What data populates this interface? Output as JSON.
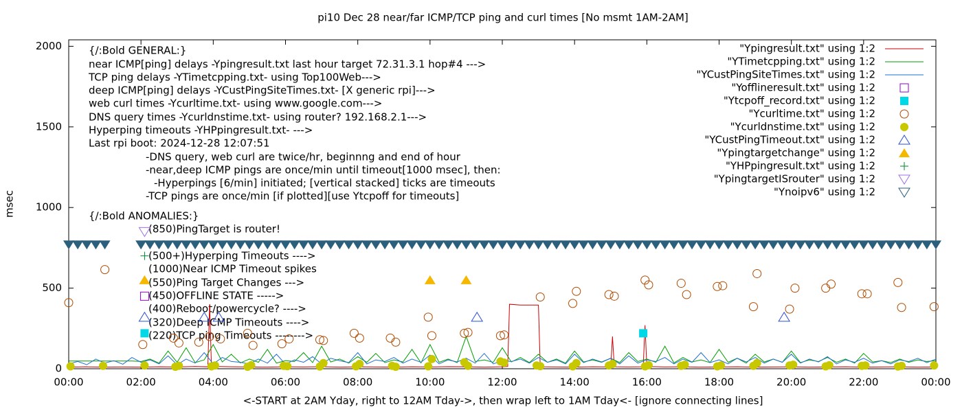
{
  "chart_data": {
    "type": "line",
    "title": "pi10 Dec 28  near/far ICMP/TCP ping and curl times [No msmt 1AM-2AM]",
    "x_label": "<-START at 2AM Yday, right to 12AM Tday->, then wrap left to 1AM Tday<- [ignore connecting lines]",
    "y_label": "msec",
    "xlim": [
      0,
      24
    ],
    "ylim": [
      0,
      2040
    ],
    "xticks": [
      {
        "value": 0,
        "label": "00:00"
      },
      {
        "value": 2,
        "label": "02:00"
      },
      {
        "value": 4,
        "label": "04:00"
      },
      {
        "value": 6,
        "label": "06:00"
      },
      {
        "value": 8,
        "label": "08:00"
      },
      {
        "value": 10,
        "label": "10:00"
      },
      {
        "value": 12,
        "label": "12:00"
      },
      {
        "value": 14,
        "label": "14:00"
      },
      {
        "value": 16,
        "label": "16:00"
      },
      {
        "value": 18,
        "label": "18:00"
      },
      {
        "value": 20,
        "label": "20:00"
      },
      {
        "value": 22,
        "label": "22:00"
      },
      {
        "value": 24,
        "label": "00:00"
      }
    ],
    "yticks": [
      0,
      500,
      1000,
      1500,
      2000
    ],
    "grid": false,
    "legend": "top-right",
    "annotations": [
      "{/:Bold GENERAL:}",
      "near ICMP[ping] delays -Ypingresult.txt last hour target 72.31.3.1 hop#4 --->",
      "TCP ping delays -YTimetcpping.txt- using Top100Web--->",
      "deep ICMP[ping] delays -YCustPingSiteTimes.txt- [X generic rpi]--->",
      "web curl times -Ycurltime.txt- using www.google.com--->",
      "DNS query times -Ycurldnstime.txt- using router? 192.168.2.1--->",
      "Hyperping timeouts -YHPpingresult.txt- --->",
      "Last rpi boot: 2024-12-28 12:07:51",
      "-DNS query, web curl are twice/hr, beginnng and end of hour",
      "-near,deep ICMP pings are once/min until timeout[1000 msec], then:",
      "-Hyperpings [6/min] initiated; [vertical stacked] ticks are timeouts",
      "-TCP pings are once/min [if plotted][use Ytcpoff for timeouts]",
      "{/:Bold ANOMALIES:}",
      "(850)PingTarget is router!",
      "(500+)Hyperping Timeouts ---->",
      "(1000)Near ICMP Timeout spikes",
      "(550)Ping Target Changes --->",
      "(450)OFFLINE STATE ----->",
      "(400)Reboot/powercycle? ---->",
      "(320)Deep ICMP Timeouts ---->",
      "(220)TCP ping Timeouts -------->"
    ],
    "x": [
      0,
      0.25,
      0.5,
      0.75,
      1,
      1.25,
      1.5,
      1.75,
      2,
      2.25,
      2.5,
      2.75,
      3,
      3.25,
      3.5,
      3.75,
      4,
      4.25,
      4.5,
      4.75,
      5,
      5.25,
      5.5,
      5.75,
      6,
      6.25,
      6.5,
      6.75,
      7,
      7.25,
      7.5,
      7.75,
      8,
      8.25,
      8.5,
      8.75,
      9,
      9.25,
      9.5,
      9.75,
      10,
      10.25,
      10.5,
      10.75,
      11,
      11.25,
      11.5,
      11.75,
      12,
      12.25,
      12.5,
      12.75,
      13,
      13.25,
      13.5,
      13.75,
      14,
      14.25,
      14.5,
      14.75,
      15,
      15.25,
      15.5,
      15.75,
      16,
      16.25,
      16.5,
      16.75,
      17,
      17.25,
      17.5,
      17.75,
      18,
      18.25,
      18.5,
      18.75,
      19,
      19.25,
      19.5,
      19.75,
      20,
      20.25,
      20.5,
      20.75,
      21,
      21.25,
      21.5,
      21.75,
      22,
      22.25,
      22.5,
      22.75,
      23,
      23.25,
      23.5,
      23.75,
      24
    ],
    "series": [
      {
        "name": "\"Ypingresult.txt\" using 1:2",
        "color": "#cc0000",
        "marker": "line",
        "x": [
          0,
          0.5,
          1,
          1.5,
          2,
          2.5,
          3,
          3.5,
          3.85,
          3.9,
          3.95,
          4.5,
          5,
          5.5,
          6,
          6.5,
          7,
          7.5,
          8,
          8.5,
          9,
          9.5,
          10,
          10.5,
          11,
          11.5,
          12,
          12.15,
          12.2,
          12.5,
          13,
          13.05,
          13.5,
          14,
          14.5,
          15,
          15.05,
          15.1,
          15.5,
          15.9,
          15.95,
          16,
          16.5,
          17,
          17.5,
          18,
          18.5,
          19,
          19.5,
          20,
          20.5,
          21,
          21.5,
          22,
          22.5,
          23,
          23.5,
          24
        ],
        "values": [
          10,
          12,
          10,
          11,
          10,
          12,
          11,
          14,
          12,
          400,
          15,
          12,
          11,
          10,
          12,
          11,
          13,
          10,
          12,
          11,
          10,
          12,
          11,
          13,
          12,
          10,
          12,
          14,
          400,
          395,
          395,
          12,
          11,
          10,
          12,
          11,
          200,
          12,
          11,
          12,
          270,
          14,
          11,
          12,
          10,
          11,
          12,
          10,
          11,
          12,
          10,
          11,
          12,
          10,
          11,
          12,
          10,
          11
        ]
      },
      {
        "name": "\"YTimetcpping.txt\" using 1:2",
        "color": "#009e00",
        "marker": "line",
        "values": [
          48,
          48,
          48,
          48,
          48,
          48,
          48,
          48,
          45,
          60,
          35,
          110,
          40,
          130,
          38,
          55,
          150,
          42,
          90,
          36,
          60,
          40,
          120,
          35,
          50,
          45,
          100,
          38,
          140,
          42,
          60,
          35,
          75,
          40,
          95,
          38,
          55,
          42,
          120,
          36,
          150,
          40,
          60,
          38,
          200,
          45,
          55,
          40,
          130,
          42,
          70,
          38,
          90,
          40,
          60,
          35,
          110,
          42,
          55,
          40,
          65,
          38,
          100,
          45,
          60,
          40,
          140,
          36,
          70,
          42,
          55,
          38,
          120,
          40,
          65,
          35,
          90,
          42,
          60,
          40,
          110,
          38,
          55,
          45,
          70,
          40,
          60,
          35,
          95,
          42,
          50,
          38,
          60,
          40,
          55,
          45,
          50
        ]
      },
      {
        "name": "\"YCustPingSiteTimes.txt\" using 1:2",
        "color": "#1f6fd0",
        "marker": "line",
        "values": [
          30,
          45,
          25,
          60,
          35,
          50,
          28,
          70,
          40,
          55,
          30,
          80,
          25,
          60,
          35,
          100,
          30,
          70,
          45,
          40,
          30,
          60,
          35,
          90,
          28,
          55,
          40,
          75,
          30,
          65,
          50,
          38,
          100,
          30,
          55,
          45,
          70,
          35,
          60,
          40,
          85,
          30,
          55,
          42,
          65,
          35,
          95,
          30,
          50,
          45,
          60,
          35,
          70,
          40,
          55,
          30,
          90,
          38,
          60,
          42,
          65,
          30,
          80,
          35,
          55,
          45,
          70,
          30,
          60,
          40,
          100,
          38,
          55,
          30,
          65,
          42,
          70,
          35,
          60,
          40,
          90,
          35,
          60,
          42,
          75,
          30,
          55,
          40,
          65,
          35,
          50,
          30,
          55,
          45,
          65,
          38,
          60
        ]
      },
      {
        "name": "\"Yofflineresult.txt\" using 1:2",
        "color": "#9400d3",
        "marker": "open-square",
        "x": [
          2.1
        ],
        "values": [
          450
        ]
      },
      {
        "name": "\"Ytcpoff_record.txt\" using 1:2",
        "color": "#00d8e8",
        "marker": "filled-square",
        "x": [
          2.1,
          15.9
        ],
        "values": [
          220,
          220
        ]
      },
      {
        "name": "\"Ycurltime.txt\" using 1:2",
        "color": "#b04a00",
        "marker": "open-circle",
        "x": [
          0,
          1,
          2.05,
          2.9,
          3.05,
          3.6,
          3.9,
          4.2,
          4.95,
          5.1,
          5.9,
          6.1,
          6.95,
          7.05,
          7.9,
          8.05,
          8.9,
          9.05,
          9.95,
          10.05,
          10.95,
          11.05,
          11.95,
          12.05,
          13.05,
          13.95,
          14.05,
          14.95,
          15.1,
          15.95,
          16.05,
          16.95,
          17.1,
          17.95,
          18.1,
          18.95,
          19.05,
          19.95,
          20.1,
          20.95,
          21.1,
          21.95,
          22.1,
          22.95,
          23.05,
          23.95
        ],
        "values": [
          410,
          615,
          150,
          190,
          160,
          165,
          200,
          185,
          220,
          145,
          155,
          185,
          180,
          175,
          220,
          190,
          190,
          165,
          320,
          205,
          220,
          225,
          205,
          210,
          445,
          405,
          480,
          460,
          450,
          550,
          520,
          530,
          460,
          510,
          515,
          385,
          590,
          370,
          500,
          500,
          525,
          465,
          465,
          535,
          380,
          385
        ]
      },
      {
        "name": "\"Ycurldnstime.txt\" using 1:2",
        "color": "#c8c800",
        "marker": "filled-circle",
        "x": [
          0.05,
          0.95,
          2.1,
          2.95,
          3.05,
          3.95,
          4.05,
          4.95,
          5.05,
          5.95,
          6.05,
          6.95,
          7.05,
          7.95,
          8.05,
          8.95,
          9.05,
          9.95,
          10.05,
          10.95,
          11.05,
          11.95,
          12.05,
          12.95,
          13.05,
          13.95,
          14.05,
          14.95,
          15.05,
          15.95,
          16.05,
          16.95,
          17.05,
          17.95,
          18.05,
          18.95,
          19.05,
          19.95,
          20.05,
          20.95,
          21.05,
          21.95,
          22.05,
          22.95,
          23.05,
          23.95
        ],
        "values": [
          15,
          18,
          20,
          12,
          18,
          15,
          20,
          12,
          22,
          18,
          16,
          14,
          35,
          15,
          30,
          18,
          12,
          15,
          60,
          40,
          18,
          45,
          38,
          20,
          16,
          15,
          35,
          20,
          30,
          15,
          22,
          18,
          25,
          15,
          20,
          18,
          35,
          20,
          25,
          15,
          22,
          18,
          20,
          14,
          18,
          20
        ]
      },
      {
        "name": "\"YCustPingTimeout.txt\" using 1:2",
        "color": "#2b4fd8",
        "marker": "open-triangle",
        "x": [
          2.1,
          3.75,
          4.15,
          11.3,
          19.8
        ],
        "values": [
          320,
          320,
          320,
          320,
          320
        ]
      },
      {
        "name": "\"Ypingtargetchange\" using 1:2",
        "color": "#f5b800",
        "marker": "filled-triangle",
        "x": [
          2.1,
          10,
          11
        ],
        "values": [
          550,
          550,
          550
        ]
      },
      {
        "name": "\"YHPpingresult.txt\" using 1:2",
        "color": "#008a2e",
        "marker": "plus",
        "x": [
          2.1
        ],
        "values": [
          700
        ]
      },
      {
        "name": "\"YpingtargetISrouter\" using 1:2",
        "color": "#a070e8",
        "marker": "open-inv-triangle",
        "x": [
          2.1
        ],
        "values": [
          850
        ]
      },
      {
        "name": "\"Ynoipv6\" using 1:2",
        "color": "#2c5f7c",
        "marker": "filled-inv-triangle",
        "x": [
          0,
          0.25,
          0.5,
          0.75,
          1,
          2,
          2.25,
          2.5,
          2.75,
          3,
          3.25,
          3.5,
          3.75,
          4,
          4.25,
          4.5,
          4.75,
          5,
          5.25,
          5.5,
          5.75,
          6,
          6.25,
          6.5,
          6.75,
          7,
          7.25,
          7.5,
          7.75,
          8,
          8.25,
          8.5,
          8.75,
          9,
          9.25,
          9.5,
          9.75,
          10,
          10.25,
          10.5,
          10.75,
          11,
          11.25,
          11.5,
          11.75,
          12,
          12.25,
          12.5,
          12.75,
          13,
          13.25,
          13.5,
          13.75,
          14,
          14.25,
          14.5,
          14.75,
          15,
          15.25,
          15.5,
          15.75,
          16,
          16.25,
          16.5,
          16.75,
          17,
          17.25,
          17.5,
          17.75,
          18,
          18.25,
          18.5,
          18.75,
          19,
          19.25,
          19.5,
          19.75,
          20,
          20.25,
          20.5,
          20.75,
          21,
          21.25,
          21.5,
          21.75,
          22,
          22.25,
          22.5,
          22.75,
          23,
          23.25,
          23.5,
          23.75,
          24
        ],
        "values": [
          770,
          770,
          770,
          770,
          770,
          770,
          770,
          770,
          770,
          770,
          770,
          770,
          770,
          770,
          770,
          770,
          770,
          770,
          770,
          770,
          770,
          770,
          770,
          770,
          770,
          770,
          770,
          770,
          770,
          770,
          770,
          770,
          770,
          770,
          770,
          770,
          770,
          770,
          770,
          770,
          770,
          770,
          770,
          770,
          770,
          770,
          770,
          770,
          770,
          770,
          770,
          770,
          770,
          770,
          770,
          770,
          770,
          770,
          770,
          770,
          770,
          770,
          770,
          770,
          770,
          770,
          770,
          770,
          770,
          770,
          770,
          770,
          770,
          770,
          770,
          770,
          770,
          770,
          770,
          770,
          770,
          770,
          770,
          770,
          770,
          770,
          770,
          770,
          770,
          770,
          770,
          770,
          770,
          770
        ]
      }
    ]
  }
}
